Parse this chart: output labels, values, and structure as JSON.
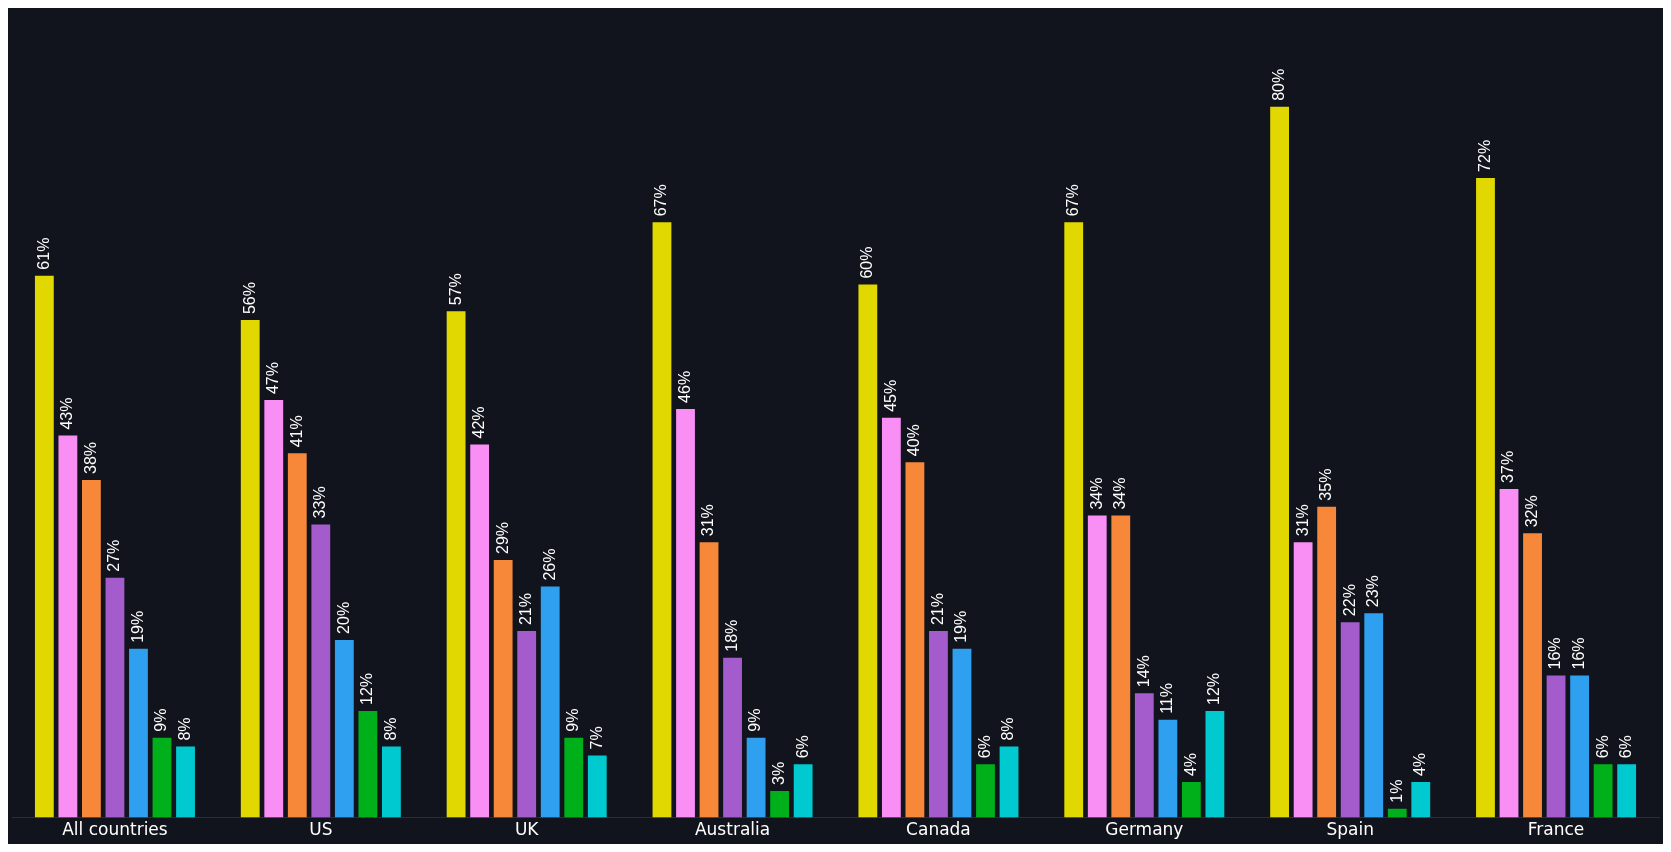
{
  "chart_data": {
    "type": "bar",
    "categories": [
      "All countries",
      "US",
      "UK",
      "Australia",
      "Canada",
      "Germany",
      "Spain",
      "France"
    ],
    "series": [
      {
        "color": "#e0d800",
        "values": [
          61,
          56,
          57,
          67,
          60,
          67,
          80,
          72
        ],
        "value_labels": [
          "61%",
          "56%",
          "57%",
          "67%",
          "60%",
          "67%",
          "80%",
          "72%"
        ]
      },
      {
        "color": "#f98ef5",
        "values": [
          43,
          47,
          42,
          46,
          45,
          34,
          31,
          37
        ],
        "value_labels": [
          "43%",
          "47%",
          "42%",
          "46%",
          "45%",
          "34%",
          "31%",
          "37%"
        ]
      },
      {
        "color": "#f7883a",
        "values": [
          38,
          41,
          29,
          31,
          40,
          34,
          35,
          32
        ],
        "value_labels": [
          "38%",
          "41%",
          "29%",
          "31%",
          "40%",
          "34%",
          "35%",
          "32%"
        ]
      },
      {
        "color": "#a45ccc",
        "values": [
          27,
          33,
          21,
          18,
          21,
          14,
          22,
          16
        ],
        "value_labels": [
          "27%",
          "33%",
          "21%",
          "18%",
          "21%",
          "14%",
          "22%",
          "16%"
        ]
      },
      {
        "color": "#2f9ff0",
        "values": [
          19,
          20,
          26,
          9,
          19,
          11,
          23,
          16
        ],
        "value_labels": [
          "19%",
          "20%",
          "26%",
          "9%",
          "19%",
          "11%",
          "23%",
          "16%"
        ]
      },
      {
        "color": "#00b01a",
        "values": [
          9,
          12,
          9,
          3,
          6,
          4,
          1,
          6
        ],
        "value_labels": [
          "9%",
          "12%",
          "9%",
          "3%",
          "6%",
          "4%",
          "1%",
          "6%"
        ]
      },
      {
        "color": "#00cad0",
        "values": [
          8,
          8,
          7,
          6,
          8,
          12,
          4,
          6
        ],
        "value_labels": [
          "8%",
          "8%",
          "7%",
          "6%",
          "8%",
          "12%",
          "4%",
          "6%"
        ]
      }
    ],
    "grid": false,
    "legend": false
  }
}
